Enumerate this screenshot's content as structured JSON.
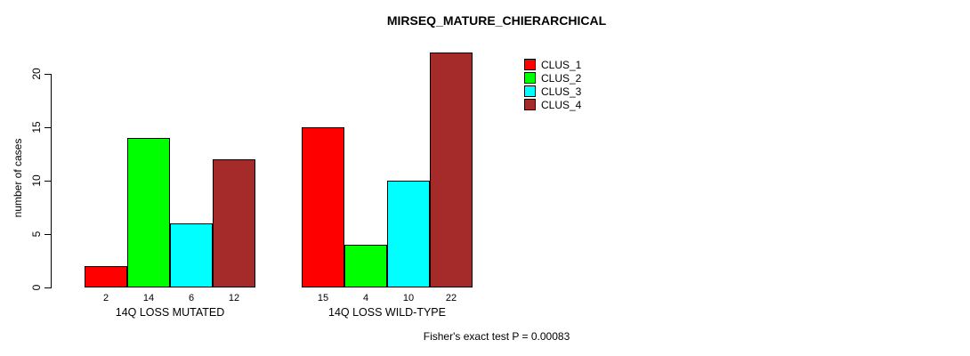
{
  "chart_data": {
    "type": "bar",
    "title": "MIRSEQ_MATURE_CHIERARCHICAL",
    "ylabel": "number of cases",
    "xlabel": "",
    "ylim": [
      0,
      20
    ],
    "yticks": [
      0,
      5,
      10,
      15,
      20
    ],
    "categories": [
      "14Q LOSS MUTATED",
      "14Q LOSS WILD-TYPE"
    ],
    "series": [
      {
        "name": "CLUS_1",
        "color": "#FF0000",
        "values": [
          2,
          15
        ]
      },
      {
        "name": "CLUS_2",
        "color": "#00FF00",
        "values": [
          14,
          4
        ]
      },
      {
        "name": "CLUS_3",
        "color": "#00FFFF",
        "values": [
          6,
          10
        ]
      },
      {
        "name": "CLUS_4",
        "color": "#A52A2A",
        "values": [
          12,
          22
        ]
      }
    ],
    "bar_value_labels": true,
    "legend_position": "top-right",
    "grid": false,
    "axis_color": "#000000",
    "bar_border_color": "#000000",
    "background_color": "#FFFFFF",
    "caption": "Fisher's exact test P = 0.00083"
  }
}
